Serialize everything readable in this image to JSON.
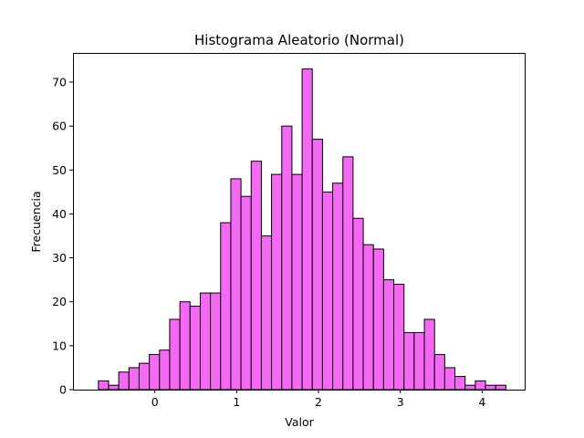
{
  "chart_data": {
    "type": "bar",
    "title": "Histograma Aleatorio (Normal)",
    "xlabel": "Valor",
    "ylabel": "Frecuencia",
    "bar_color": "#f468f4",
    "edge_color": "#000000",
    "bin_start": -0.69,
    "bin_width": 0.1245,
    "values": [
      2,
      1,
      4,
      5,
      6,
      8,
      9,
      16,
      20,
      19,
      22,
      22,
      38,
      48,
      44,
      52,
      35,
      49,
      60,
      49,
      73,
      57,
      45,
      47,
      53,
      39,
      33,
      32,
      25,
      24,
      13,
      13,
      16,
      8,
      5,
      3,
      1,
      2,
      1,
      1
    ],
    "xlim": [
      -1.0,
      4.52
    ],
    "ylim": [
      0,
      76.65
    ],
    "xticks": [
      0,
      1,
      2,
      3,
      4
    ],
    "yticks": [
      0,
      10,
      20,
      30,
      40,
      50,
      60,
      70
    ],
    "grid": false
  }
}
